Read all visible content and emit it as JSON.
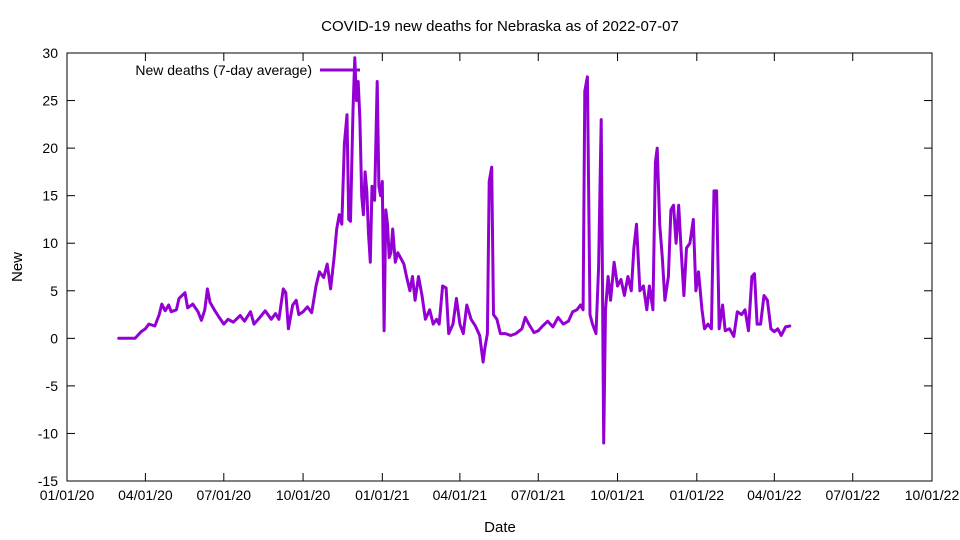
{
  "chart_data": {
    "type": "line",
    "title": "COVID-19 new deaths for Nebraska as of 2022-07-07",
    "xlabel": "Date",
    "ylabel": "New",
    "ylim": [
      -15,
      30
    ],
    "yticks": [
      -15,
      -10,
      -5,
      0,
      5,
      10,
      15,
      20,
      25,
      30
    ],
    "xlim": [
      "2020-01-01",
      "2022-10-01"
    ],
    "xticks": [
      {
        "date": "2020-01-01",
        "label": "01/01/20"
      },
      {
        "date": "2020-04-01",
        "label": "04/01/20"
      },
      {
        "date": "2020-07-01",
        "label": "07/01/20"
      },
      {
        "date": "2020-10-01",
        "label": "10/01/20"
      },
      {
        "date": "2021-01-01",
        "label": "01/01/21"
      },
      {
        "date": "2021-04-01",
        "label": "04/01/21"
      },
      {
        "date": "2021-07-01",
        "label": "07/01/21"
      },
      {
        "date": "2021-10-01",
        "label": "10/01/21"
      },
      {
        "date": "2022-01-01",
        "label": "01/01/22"
      },
      {
        "date": "2022-04-01",
        "label": "04/01/22"
      },
      {
        "date": "2022-07-01",
        "label": "07/01/22"
      },
      {
        "date": "2022-10-01",
        "label": "10/01/22"
      }
    ],
    "legend_position": "top-left",
    "grid": false,
    "series": [
      {
        "name": "New deaths (7-day average)",
        "color": "#9400d3",
        "points": [
          [
            "2020-03-01",
            0
          ],
          [
            "2020-03-20",
            0
          ],
          [
            "2020-03-27",
            0.7
          ],
          [
            "2020-04-01",
            1.0
          ],
          [
            "2020-04-05",
            1.5
          ],
          [
            "2020-04-12",
            1.3
          ],
          [
            "2020-04-17",
            2.5
          ],
          [
            "2020-04-20",
            3.6
          ],
          [
            "2020-04-24",
            2.9
          ],
          [
            "2020-04-28",
            3.5
          ],
          [
            "2020-05-01",
            2.8
          ],
          [
            "2020-05-07",
            3.0
          ],
          [
            "2020-05-10",
            4.2
          ],
          [
            "2020-05-17",
            4.8
          ],
          [
            "2020-05-20",
            3.2
          ],
          [
            "2020-05-26",
            3.6
          ],
          [
            "2020-06-01",
            2.8
          ],
          [
            "2020-06-05",
            1.9
          ],
          [
            "2020-06-09",
            3.0
          ],
          [
            "2020-06-12",
            5.2
          ],
          [
            "2020-06-15",
            3.8
          ],
          [
            "2020-06-20",
            3.0
          ],
          [
            "2020-06-25",
            2.3
          ],
          [
            "2020-07-01",
            1.5
          ],
          [
            "2020-07-06",
            2.0
          ],
          [
            "2020-07-12",
            1.7
          ],
          [
            "2020-07-20",
            2.4
          ],
          [
            "2020-07-25",
            1.8
          ],
          [
            "2020-08-01",
            2.8
          ],
          [
            "2020-08-05",
            1.5
          ],
          [
            "2020-08-10",
            2.0
          ],
          [
            "2020-08-18",
            2.9
          ],
          [
            "2020-08-25",
            2.0
          ],
          [
            "2020-08-30",
            2.6
          ],
          [
            "2020-09-03",
            2.0
          ],
          [
            "2020-09-08",
            5.2
          ],
          [
            "2020-09-11",
            4.8
          ],
          [
            "2020-09-14",
            1.0
          ],
          [
            "2020-09-19",
            3.5
          ],
          [
            "2020-09-23",
            4.0
          ],
          [
            "2020-09-26",
            2.5
          ],
          [
            "2020-10-01",
            2.8
          ],
          [
            "2020-10-06",
            3.3
          ],
          [
            "2020-10-11",
            2.7
          ],
          [
            "2020-10-16",
            5.5
          ],
          [
            "2020-10-20",
            7.0
          ],
          [
            "2020-10-25",
            6.4
          ],
          [
            "2020-10-29",
            7.8
          ],
          [
            "2020-11-02",
            5.2
          ],
          [
            "2020-11-06",
            8.5
          ],
          [
            "2020-11-09",
            11.5
          ],
          [
            "2020-11-12",
            13.0
          ],
          [
            "2020-11-15",
            12.0
          ],
          [
            "2020-11-18",
            20.5
          ],
          [
            "2020-11-21",
            23.5
          ],
          [
            "2020-11-23",
            12.5
          ],
          [
            "2020-11-25",
            12.3
          ],
          [
            "2020-11-28",
            24.0
          ],
          [
            "2020-11-30",
            29.5
          ],
          [
            "2020-12-02",
            25.0
          ],
          [
            "2020-12-04",
            27.0
          ],
          [
            "2020-12-06",
            23.0
          ],
          [
            "2020-12-08",
            15.0
          ],
          [
            "2020-12-10",
            13.0
          ],
          [
            "2020-12-12",
            17.5
          ],
          [
            "2020-12-14",
            15.5
          ],
          [
            "2020-12-16",
            11.0
          ],
          [
            "2020-12-18",
            8.0
          ],
          [
            "2020-12-20",
            16.0
          ],
          [
            "2020-12-23",
            14.5
          ],
          [
            "2020-12-26",
            27.0
          ],
          [
            "2020-12-28",
            16.0
          ],
          [
            "2020-12-30",
            15.0
          ],
          [
            "2021-01-01",
            16.5
          ],
          [
            "2021-01-03",
            0.8
          ],
          [
            "2021-01-05",
            13.5
          ],
          [
            "2021-01-07",
            12.0
          ],
          [
            "2021-01-09",
            8.5
          ],
          [
            "2021-01-11",
            9.0
          ],
          [
            "2021-01-13",
            11.5
          ],
          [
            "2021-01-16",
            8.0
          ],
          [
            "2021-01-19",
            9.0
          ],
          [
            "2021-01-22",
            8.5
          ],
          [
            "2021-01-26",
            7.8
          ],
          [
            "2021-01-29",
            6.5
          ],
          [
            "2021-02-02",
            5.0
          ],
          [
            "2021-02-05",
            6.5
          ],
          [
            "2021-02-08",
            4.0
          ],
          [
            "2021-02-12",
            6.5
          ],
          [
            "2021-02-16",
            4.5
          ],
          [
            "2021-02-20",
            2.0
          ],
          [
            "2021-02-25",
            3.0
          ],
          [
            "2021-03-01",
            1.5
          ],
          [
            "2021-03-05",
            2.0
          ],
          [
            "2021-03-08",
            1.5
          ],
          [
            "2021-03-12",
            5.5
          ],
          [
            "2021-03-16",
            5.3
          ],
          [
            "2021-03-19",
            0.5
          ],
          [
            "2021-03-24",
            1.5
          ],
          [
            "2021-03-28",
            4.2
          ],
          [
            "2021-04-01",
            1.5
          ],
          [
            "2021-04-05",
            0.5
          ],
          [
            "2021-04-09",
            3.5
          ],
          [
            "2021-04-14",
            2.0
          ],
          [
            "2021-04-19",
            1.3
          ],
          [
            "2021-04-24",
            0.3
          ],
          [
            "2021-04-28",
            -2.5
          ],
          [
            "2021-04-30",
            -1.0
          ],
          [
            "2021-05-03",
            0.5
          ],
          [
            "2021-05-05",
            16.5
          ],
          [
            "2021-05-08",
            18.0
          ],
          [
            "2021-05-10",
            2.5
          ],
          [
            "2021-05-14",
            2.0
          ],
          [
            "2021-05-18",
            0.5
          ],
          [
            "2021-05-24",
            0.5
          ],
          [
            "2021-05-30",
            0.3
          ],
          [
            "2021-06-05",
            0.5
          ],
          [
            "2021-06-12",
            1.0
          ],
          [
            "2021-06-16",
            2.2
          ],
          [
            "2021-06-20",
            1.5
          ],
          [
            "2021-06-26",
            0.6
          ],
          [
            "2021-07-01",
            0.8
          ],
          [
            "2021-07-06",
            1.3
          ],
          [
            "2021-07-12",
            1.8
          ],
          [
            "2021-07-18",
            1.2
          ],
          [
            "2021-07-24",
            2.2
          ],
          [
            "2021-07-30",
            1.5
          ],
          [
            "2021-08-05",
            1.8
          ],
          [
            "2021-08-10",
            2.8
          ],
          [
            "2021-08-15",
            3.0
          ],
          [
            "2021-08-19",
            3.5
          ],
          [
            "2021-08-22",
            3.0
          ],
          [
            "2021-08-24",
            26.0
          ],
          [
            "2021-08-27",
            27.5
          ],
          [
            "2021-08-30",
            2.5
          ],
          [
            "2021-09-02",
            1.5
          ],
          [
            "2021-09-06",
            0.5
          ],
          [
            "2021-09-09",
            7.5
          ],
          [
            "2021-09-12",
            23.0
          ],
          [
            "2021-09-15",
            -11.0
          ],
          [
            "2021-09-17",
            3.0
          ],
          [
            "2021-09-20",
            6.5
          ],
          [
            "2021-09-23",
            4.0
          ],
          [
            "2021-09-27",
            8.0
          ],
          [
            "2021-10-01",
            5.5
          ],
          [
            "2021-10-05",
            6.2
          ],
          [
            "2021-10-09",
            4.5
          ],
          [
            "2021-10-13",
            6.5
          ],
          [
            "2021-10-17",
            5.0
          ],
          [
            "2021-10-20",
            9.5
          ],
          [
            "2021-10-23",
            12.0
          ],
          [
            "2021-10-27",
            5.0
          ],
          [
            "2021-10-31",
            5.5
          ],
          [
            "2021-11-04",
            3.0
          ],
          [
            "2021-11-07",
            5.5
          ],
          [
            "2021-11-11",
            3.0
          ],
          [
            "2021-11-14",
            18.5
          ],
          [
            "2021-11-16",
            20.0
          ],
          [
            "2021-11-19",
            12.0
          ],
          [
            "2021-11-22",
            8.5
          ],
          [
            "2021-11-25",
            4.0
          ],
          [
            "2021-11-29",
            6.5
          ],
          [
            "2021-12-02",
            13.5
          ],
          [
            "2021-12-05",
            14.0
          ],
          [
            "2021-12-08",
            10.0
          ],
          [
            "2021-12-11",
            14.0
          ],
          [
            "2021-12-14",
            9.0
          ],
          [
            "2021-12-17",
            4.5
          ],
          [
            "2021-12-20",
            9.5
          ],
          [
            "2021-12-24",
            10.0
          ],
          [
            "2021-12-28",
            12.5
          ],
          [
            "2021-12-31",
            5.0
          ],
          [
            "2022-01-03",
            7.0
          ],
          [
            "2022-01-07",
            3.0
          ],
          [
            "2022-01-10",
            1.0
          ],
          [
            "2022-01-14",
            1.5
          ],
          [
            "2022-01-18",
            1.0
          ],
          [
            "2022-01-21",
            15.5
          ],
          [
            "2022-01-24",
            15.5
          ],
          [
            "2022-01-27",
            1.0
          ],
          [
            "2022-01-31",
            3.5
          ],
          [
            "2022-02-03",
            0.8
          ],
          [
            "2022-02-08",
            1.0
          ],
          [
            "2022-02-13",
            0.2
          ],
          [
            "2022-02-17",
            2.8
          ],
          [
            "2022-02-22",
            2.5
          ],
          [
            "2022-02-26",
            3.0
          ],
          [
            "2022-03-02",
            0.8
          ],
          [
            "2022-03-06",
            6.5
          ],
          [
            "2022-03-09",
            6.8
          ],
          [
            "2022-03-12",
            1.5
          ],
          [
            "2022-03-16",
            1.5
          ],
          [
            "2022-03-20",
            4.5
          ],
          [
            "2022-03-24",
            4.0
          ],
          [
            "2022-03-28",
            1.0
          ],
          [
            "2022-04-01",
            0.7
          ],
          [
            "2022-04-05",
            1.0
          ],
          [
            "2022-04-09",
            0.3
          ],
          [
            "2022-04-14",
            1.2
          ],
          [
            "2022-04-19",
            1.3
          ]
        ]
      }
    ]
  }
}
